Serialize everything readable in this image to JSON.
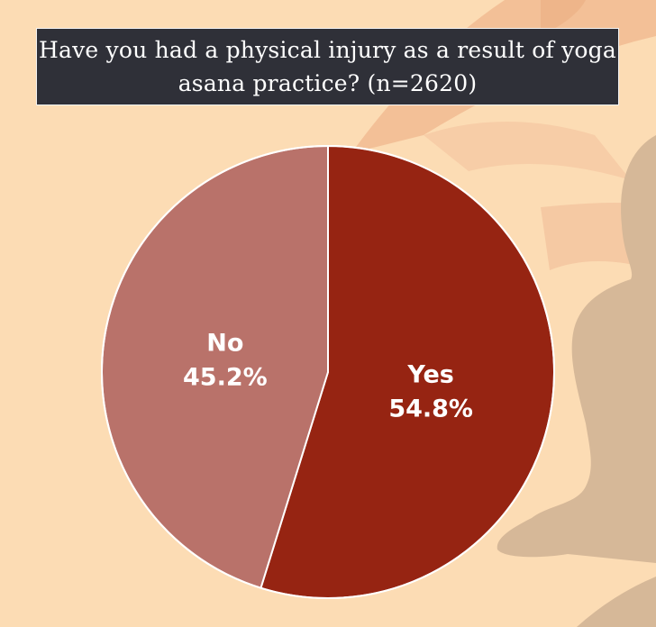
{
  "title": "Have you had a physical injury as a result of yoga asana practice? (n=2620)",
  "chart_data": {
    "type": "pie",
    "title": "Have you had a physical injury as a result of yoga asana practice? (n=2620)",
    "slices": [
      {
        "label": "Yes",
        "value": 54.8,
        "value_label": "54.8%",
        "color": "#962412"
      },
      {
        "label": "No",
        "value": 45.2,
        "value_label": "45.2%",
        "color": "#b9726a"
      }
    ],
    "start_angle_deg": 0,
    "direction": "clockwise"
  },
  "colors": {
    "background": "#fcdcb4",
    "title_background": "#2f3038",
    "decor_silhouette": "#d6b898",
    "decor_band": "#f7c9a0"
  }
}
